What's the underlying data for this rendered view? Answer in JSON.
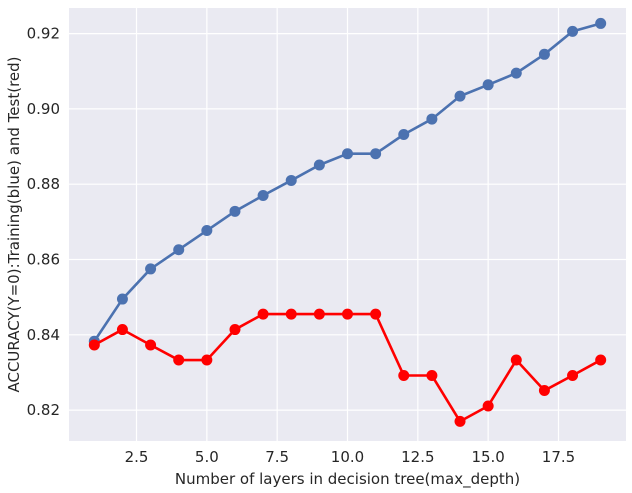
{
  "chart_data": {
    "type": "line",
    "xlabel": "Number of layers in decision tree(max_depth)",
    "ylabel": "ACCURACY(Y=0):Training(blue) and Test(red)",
    "xlim": [
      0.1,
      19.9
    ],
    "ylim": [
      0.8118,
      0.9268
    ],
    "xticks": [
      2.5,
      5.0,
      7.5,
      10.0,
      12.5,
      15.0,
      17.5
    ],
    "xtick_labels": [
      "2.5",
      "5.0",
      "7.5",
      "10.0",
      "12.5",
      "15.0",
      "17.5"
    ],
    "yticks": [
      0.82,
      0.84,
      0.86,
      0.88,
      0.9,
      0.92
    ],
    "ytick_labels": [
      "0.82",
      "0.84",
      "0.86",
      "0.88",
      "0.90",
      "0.92"
    ],
    "grid": true,
    "background": "#eaeaf2",
    "x": [
      1,
      2,
      3,
      4,
      5,
      6,
      7,
      8,
      9,
      10,
      11,
      12,
      13,
      14,
      15,
      16,
      17,
      18,
      19
    ],
    "series": [
      {
        "color": "#4c72b0",
        "values": [
          0.8383,
          0.8495,
          0.8575,
          0.8626,
          0.8677,
          0.8728,
          0.877,
          0.881,
          0.8851,
          0.8881,
          0.8881,
          0.8932,
          0.8973,
          0.9034,
          0.9064,
          0.9095,
          0.9145,
          0.9206,
          0.9227
        ]
      },
      {
        "color": "#ff0000",
        "values": [
          0.8373,
          0.8414,
          0.8373,
          0.8333,
          0.8333,
          0.8414,
          0.8455,
          0.8455,
          0.8455,
          0.8455,
          0.8455,
          0.8292,
          0.8292,
          0.817,
          0.8211,
          0.8333,
          0.8252,
          0.8292,
          0.8333
        ]
      }
    ]
  }
}
